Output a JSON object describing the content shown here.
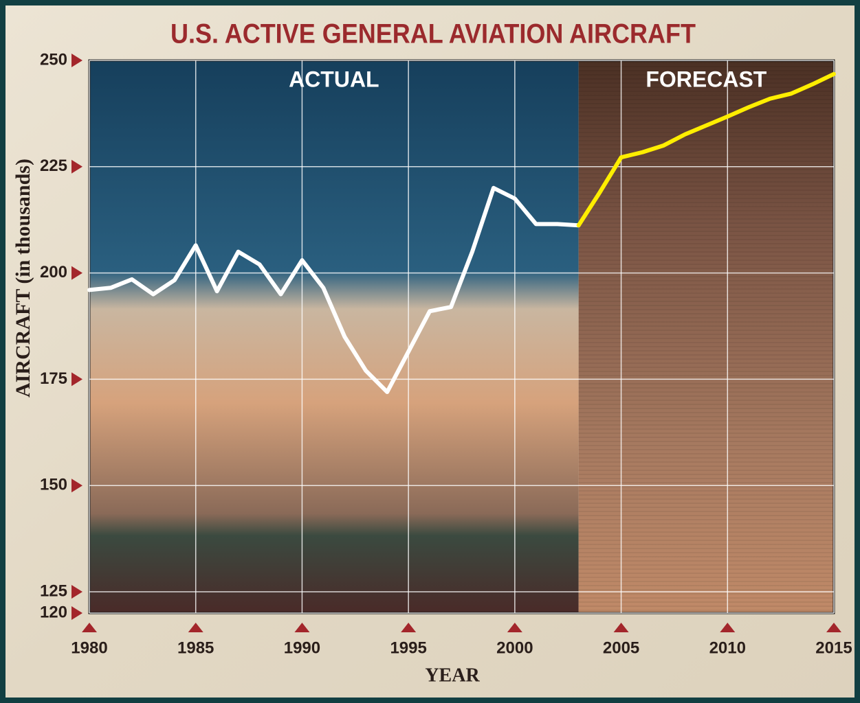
{
  "chart_data": {
    "type": "line",
    "title": "U.S. ACTIVE GENERAL AVIATION AIRCRAFT",
    "y_label": "AIRCRAFT (in thousands)",
    "x_label": "YEAR",
    "x": [
      1980,
      1981,
      1982,
      1983,
      1984,
      1985,
      1986,
      1987,
      1988,
      1989,
      1990,
      1991,
      1992,
      1993,
      1994,
      1995,
      1996,
      1997,
      1998,
      1999,
      2000,
      2001,
      2002,
      2003,
      2004,
      2005,
      2006,
      2007,
      2008,
      2009,
      2010,
      2011,
      2012,
      2013,
      2014,
      2015
    ],
    "series": [
      {
        "name": "ACTUAL",
        "color": "#ffffff",
        "values": [
          196,
          196.5,
          198.5,
          195,
          198.3,
          206.5,
          195.7,
          205,
          202,
          195,
          203,
          196.5,
          185,
          177,
          172,
          181.5,
          191,
          192,
          205,
          220,
          217.5,
          211.5,
          211.5,
          211.2,
          null,
          null,
          null,
          null,
          null,
          null,
          null,
          null,
          null,
          null,
          null,
          null
        ]
      },
      {
        "name": "FORECAST",
        "color": "#ffee00",
        "values": [
          null,
          null,
          null,
          null,
          null,
          null,
          null,
          null,
          null,
          null,
          null,
          null,
          null,
          null,
          null,
          null,
          null,
          null,
          null,
          null,
          null,
          null,
          null,
          211.2,
          219,
          227.2,
          228.4,
          230,
          232.6,
          234.7,
          236.8,
          239,
          241,
          242.2,
          244.4,
          246.8
        ]
      }
    ],
    "xlim": [
      1980,
      2015
    ],
    "xticks": [
      1980,
      1985,
      1990,
      1995,
      2000,
      2005,
      2010,
      2015
    ],
    "ylim": [
      120,
      250
    ],
    "yticks": [
      120,
      125,
      150,
      175,
      200,
      225,
      250
    ],
    "grid": true
  }
}
